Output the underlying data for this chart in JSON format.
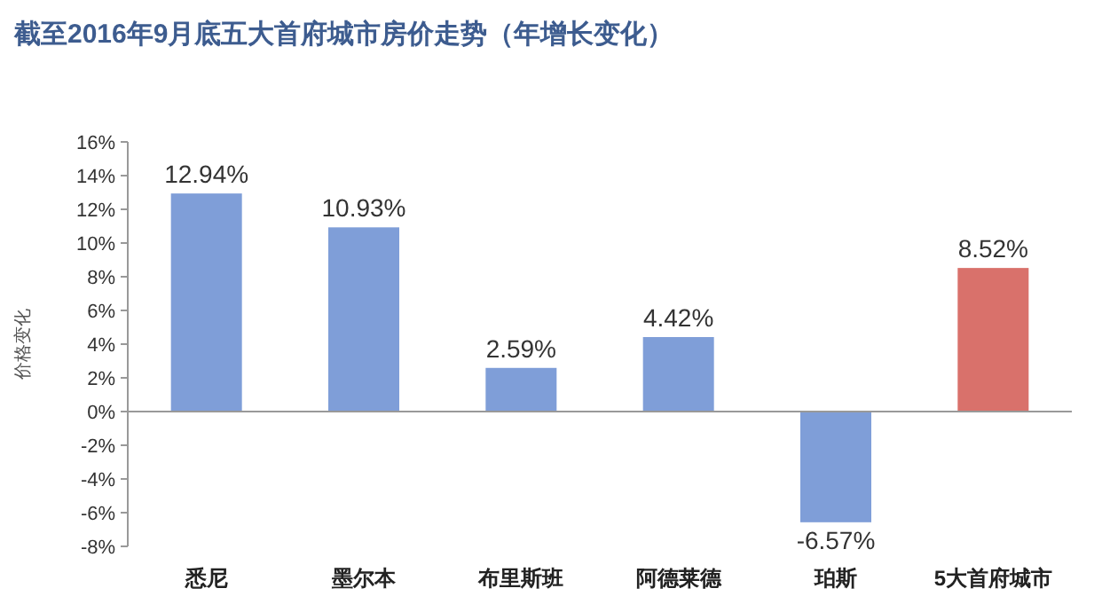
{
  "chart_data": {
    "type": "bar",
    "title": "截至2016年9月底五大首府城市房价走势（年增长变化）",
    "ylabel": "价格变化",
    "categories": [
      "悉尼",
      "墨尔本",
      "布里斯班",
      "阿德莱德",
      "珀斯",
      "5大首府城市"
    ],
    "values": [
      12.94,
      10.93,
      2.59,
      4.42,
      -6.57,
      8.52
    ],
    "colors": [
      "#7f9ed8",
      "#7f9ed8",
      "#7f9ed8",
      "#7f9ed8",
      "#7f9ed8",
      "#d9716b"
    ],
    "value_labels": [
      "12.94%",
      "10.93%",
      "2.59%",
      "4.42%",
      "-6.57%",
      "8.52%"
    ],
    "ylim": [
      -8,
      16
    ],
    "yticks": [
      {
        "value": 16,
        "label": "16%"
      },
      {
        "value": 14,
        "label": "14%"
      },
      {
        "value": 12,
        "label": "12%"
      },
      {
        "value": 10,
        "label": "10%"
      },
      {
        "value": 8,
        "label": "8%"
      },
      {
        "value": 6,
        "label": "6%"
      },
      {
        "value": 4,
        "label": "4%"
      },
      {
        "value": 2,
        "label": "2%"
      },
      {
        "value": 0,
        "label": "0%"
      },
      {
        "value": -2,
        "label": "-2%"
      },
      {
        "value": -4,
        "label": "-4%"
      },
      {
        "value": -6,
        "label": "-6%"
      },
      {
        "value": -8,
        "label": "-8%"
      }
    ]
  }
}
